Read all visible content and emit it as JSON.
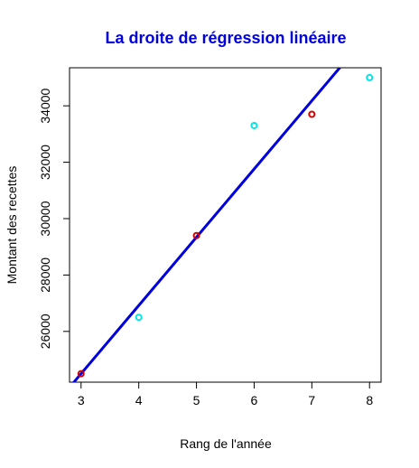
{
  "chart_data": {
    "type": "scatter",
    "title": "La droite de régression linéaire",
    "xlabel": "Rang de l'année",
    "ylabel": "Montant des recettes",
    "xlim": [
      2.8,
      8.2
    ],
    "ylim": [
      24200,
      35350
    ],
    "x_ticks": [
      3,
      4,
      5,
      6,
      7,
      8
    ],
    "y_ticks": [
      26000,
      28000,
      30000,
      32000,
      34000
    ],
    "grid": false,
    "series": [
      {
        "color": "#d00000",
        "points": [
          {
            "x": 3,
            "y": 24500
          },
          {
            "x": 5,
            "y": 29400
          },
          {
            "x": 7,
            "y": 33700
          }
        ]
      },
      {
        "color": "#00e5e5",
        "points": [
          {
            "x": 4,
            "y": 26500
          },
          {
            "x": 6,
            "y": 33300
          },
          {
            "x": 8,
            "y": 35000
          }
        ]
      }
    ],
    "regression_line": {
      "color": "#0000dd",
      "intercept": 17240,
      "slope": 2420
    },
    "title_color": "#0000dd"
  }
}
